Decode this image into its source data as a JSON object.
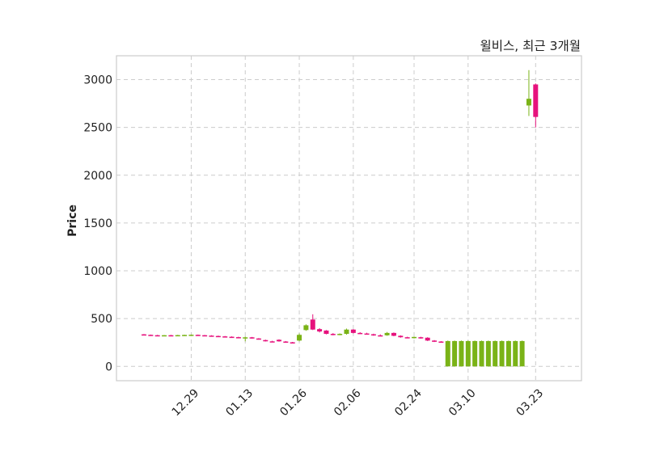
{
  "chart_data": {
    "type": "candlestick",
    "title": "윌비스, 최근 3개월",
    "xlabel": "",
    "ylabel": "Price",
    "ylim": [
      -150,
      3250
    ],
    "yticks": [
      0,
      500,
      1000,
      1500,
      2000,
      2500,
      3000
    ],
    "xtick_labels": [
      "12.29",
      "01.13",
      "01.26",
      "02.06",
      "02.24",
      "03.10",
      "03.23"
    ],
    "grid": true,
    "colors": {
      "up": "#7ab317",
      "down": "#e6127d",
      "grid": "#cccccc",
      "frame": "#cccccc"
    },
    "candles": [
      {
        "i": 0,
        "date": "",
        "open": 335,
        "high": 338,
        "low": 330,
        "close": 332
      },
      {
        "i": 1,
        "date": "",
        "open": 330,
        "high": 333,
        "low": 326,
        "close": 328
      },
      {
        "i": 2,
        "date": "",
        "open": 326,
        "high": 330,
        "low": 322,
        "close": 324
      },
      {
        "i": 3,
        "date": "",
        "open": 322,
        "high": 328,
        "low": 320,
        "close": 326
      },
      {
        "i": 4,
        "date": "",
        "open": 326,
        "high": 330,
        "low": 322,
        "close": 324
      },
      {
        "i": 5,
        "date": "",
        "open": 325,
        "high": 330,
        "low": 323,
        "close": 327
      },
      {
        "i": 6,
        "date": "",
        "open": 326,
        "high": 331,
        "low": 324,
        "close": 329
      },
      {
        "i": 7,
        "date": "12.29",
        "open": 329,
        "high": 333,
        "low": 326,
        "close": 331
      },
      {
        "i": 8,
        "date": "",
        "open": 330,
        "high": 333,
        "low": 324,
        "close": 326
      },
      {
        "i": 9,
        "date": "",
        "open": 326,
        "high": 329,
        "low": 320,
        "close": 322
      },
      {
        "i": 10,
        "date": "",
        "open": 322,
        "high": 326,
        "low": 316,
        "close": 318
      },
      {
        "i": 11,
        "date": "",
        "open": 318,
        "high": 322,
        "low": 312,
        "close": 314
      },
      {
        "i": 12,
        "date": "",
        "open": 314,
        "high": 318,
        "low": 308,
        "close": 310
      },
      {
        "i": 13,
        "date": "",
        "open": 310,
        "high": 314,
        "low": 304,
        "close": 306
      },
      {
        "i": 14,
        "date": "",
        "open": 306,
        "high": 310,
        "low": 300,
        "close": 302
      },
      {
        "i": 15,
        "date": "01.13",
        "open": 300,
        "high": 312,
        "low": 262,
        "close": 304
      },
      {
        "i": 16,
        "date": "",
        "open": 304,
        "high": 308,
        "low": 290,
        "close": 292
      },
      {
        "i": 17,
        "date": "",
        "open": 292,
        "high": 296,
        "low": 280,
        "close": 284
      },
      {
        "i": 18,
        "date": "",
        "open": 275,
        "high": 280,
        "low": 260,
        "close": 262
      },
      {
        "i": 19,
        "date": "",
        "open": 262,
        "high": 268,
        "low": 255,
        "close": 260
      },
      {
        "i": 20,
        "date": "",
        "open": 278,
        "high": 283,
        "low": 258,
        "close": 262
      },
      {
        "i": 21,
        "date": "",
        "open": 260,
        "high": 265,
        "low": 248,
        "close": 252
      },
      {
        "i": 22,
        "date": "",
        "open": 252,
        "high": 256,
        "low": 246,
        "close": 250
      },
      {
        "i": 23,
        "date": "01.26",
        "open": 270,
        "high": 345,
        "low": 262,
        "close": 330
      },
      {
        "i": 24,
        "date": "",
        "open": 380,
        "high": 440,
        "low": 372,
        "close": 430
      },
      {
        "i": 25,
        "date": "",
        "open": 490,
        "high": 545,
        "low": 380,
        "close": 385
      },
      {
        "i": 26,
        "date": "",
        "open": 390,
        "high": 400,
        "low": 355,
        "close": 365
      },
      {
        "i": 27,
        "date": "",
        "open": 375,
        "high": 380,
        "low": 335,
        "close": 340
      },
      {
        "i": 28,
        "date": "",
        "open": 340,
        "high": 348,
        "low": 325,
        "close": 330
      },
      {
        "i": 29,
        "date": "",
        "open": 332,
        "high": 345,
        "low": 326,
        "close": 340
      },
      {
        "i": 30,
        "date": "",
        "open": 340,
        "high": 395,
        "low": 332,
        "close": 385
      },
      {
        "i": 31,
        "date": "02.06",
        "open": 385,
        "high": 390,
        "low": 345,
        "close": 350
      },
      {
        "i": 32,
        "date": "",
        "open": 350,
        "high": 358,
        "low": 340,
        "close": 344
      },
      {
        "i": 33,
        "date": "",
        "open": 344,
        "high": 352,
        "low": 336,
        "close": 340
      },
      {
        "i": 34,
        "date": "",
        "open": 336,
        "high": 342,
        "low": 320,
        "close": 325
      },
      {
        "i": 35,
        "date": "",
        "open": 325,
        "high": 335,
        "low": 318,
        "close": 322
      },
      {
        "i": 36,
        "date": "",
        "open": 325,
        "high": 360,
        "low": 320,
        "close": 350
      },
      {
        "i": 37,
        "date": "",
        "open": 350,
        "high": 355,
        "low": 315,
        "close": 320
      },
      {
        "i": 38,
        "date": "",
        "open": 320,
        "high": 325,
        "low": 300,
        "close": 305
      },
      {
        "i": 39,
        "date": "",
        "open": 305,
        "high": 310,
        "low": 295,
        "close": 300
      },
      {
        "i": 40,
        "date": "02.24",
        "open": 298,
        "high": 312,
        "low": 292,
        "close": 308
      },
      {
        "i": 41,
        "date": "",
        "open": 305,
        "high": 310,
        "low": 290,
        "close": 295
      },
      {
        "i": 42,
        "date": "",
        "open": 300,
        "high": 305,
        "low": 265,
        "close": 270
      },
      {
        "i": 43,
        "date": "",
        "open": 270,
        "high": 275,
        "low": 255,
        "close": 262
      },
      {
        "i": 44,
        "date": "",
        "open": 260,
        "high": 264,
        "low": 248,
        "close": 252
      },
      {
        "i": 45,
        "date": "",
        "open": 0,
        "high": 270,
        "low": 0,
        "close": 265
      },
      {
        "i": 46,
        "date": "",
        "open": 0,
        "high": 270,
        "low": 0,
        "close": 265
      },
      {
        "i": 47,
        "date": "",
        "open": 0,
        "high": 270,
        "low": 0,
        "close": 265
      },
      {
        "i": 48,
        "date": "03.10",
        "open": 0,
        "high": 270,
        "low": 0,
        "close": 265
      },
      {
        "i": 49,
        "date": "",
        "open": 0,
        "high": 270,
        "low": 0,
        "close": 265
      },
      {
        "i": 50,
        "date": "",
        "open": 0,
        "high": 270,
        "low": 0,
        "close": 265
      },
      {
        "i": 51,
        "date": "",
        "open": 0,
        "high": 270,
        "low": 0,
        "close": 265
      },
      {
        "i": 52,
        "date": "",
        "open": 0,
        "high": 270,
        "low": 0,
        "close": 265
      },
      {
        "i": 53,
        "date": "",
        "open": 0,
        "high": 270,
        "low": 0,
        "close": 265
      },
      {
        "i": 54,
        "date": "",
        "open": 0,
        "high": 270,
        "low": 0,
        "close": 265
      },
      {
        "i": 55,
        "date": "",
        "open": 0,
        "high": 270,
        "low": 0,
        "close": 265
      },
      {
        "i": 56,
        "date": "",
        "open": 0,
        "high": 270,
        "low": 0,
        "close": 265
      },
      {
        "i": 57,
        "date": "",
        "open": 2730,
        "high": 3100,
        "low": 2620,
        "close": 2800
      },
      {
        "i": 58,
        "date": "03.23",
        "open": 2950,
        "high": 2960,
        "low": 2500,
        "close": 2610
      }
    ]
  }
}
